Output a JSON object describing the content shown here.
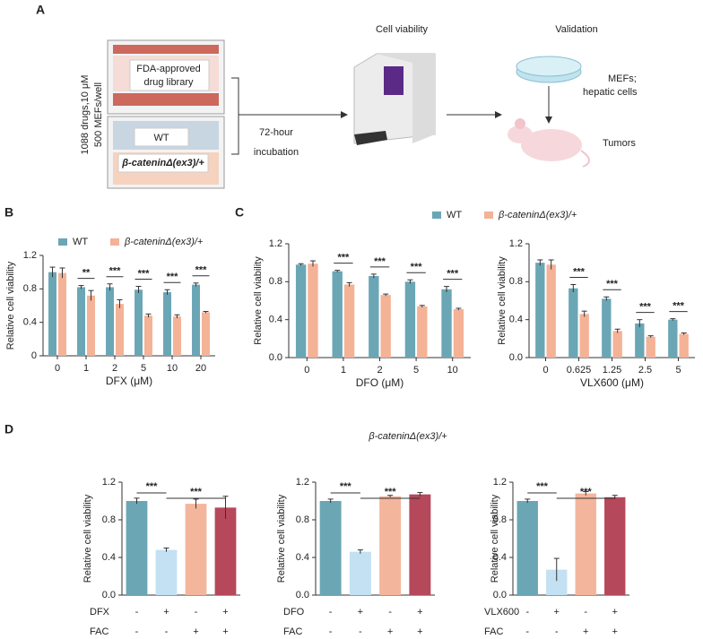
{
  "panel_labels": [
    "A",
    "B",
    "C",
    "D"
  ],
  "schematic": {
    "dose": "1088 drugs,10 μM",
    "cells": "500 MEFs/well",
    "library": [
      "FDA-approved",
      "drug library"
    ],
    "genotypes": [
      "WT",
      "β-cateninΔ(ex3)/+"
    ],
    "incubation": [
      "72-hour",
      "incubation"
    ],
    "assay": "Cell viability",
    "validation": "Validation",
    "models": [
      "MEFs;",
      "hepatic cells"
    ],
    "tumors": "Tumors"
  },
  "d_title": "β-cateninΔ(ex3)/+",
  "chart_data": [
    {
      "type": "grouped_bar",
      "y_label": "Relative cell viability",
      "x_label": "DFX (μM)",
      "categories": [
        "0",
        "1",
        "2",
        "5",
        "10",
        "20"
      ],
      "legend": true,
      "series": [
        {
          "name": "WT",
          "color": "#6ba6b5",
          "values": [
            1.0,
            0.82,
            0.82,
            0.79,
            0.76,
            0.85
          ],
          "errors": [
            0.06,
            0.02,
            0.04,
            0.04,
            0.03,
            0.02
          ]
        },
        {
          "name": "β-cateninΔ(ex3)/+",
          "color": "#f4b297",
          "values": [
            0.99,
            0.72,
            0.62,
            0.48,
            0.47,
            0.52
          ],
          "errors": [
            0.06,
            0.06,
            0.05,
            0.02,
            0.02,
            0.01
          ]
        }
      ],
      "significance": [
        null,
        "**",
        "***",
        "***",
        "***",
        "***"
      ],
      "ylim": [
        0,
        1.2
      ],
      "yticks": [
        0,
        0.4,
        0.8,
        1.2
      ]
    },
    {
      "type": "grouped_bar",
      "y_label": "Relative cell viability",
      "x_label": "DFO (μM)",
      "categories": [
        "0",
        "1",
        "2",
        "5",
        "10"
      ],
      "legend": true,
      "series": [
        {
          "name": "WT",
          "color": "#6ba6b5",
          "values": [
            0.98,
            0.91,
            0.86,
            0.8,
            0.72
          ],
          "errors": [
            0.01,
            0.01,
            0.02,
            0.02,
            0.03
          ]
        },
        {
          "name": "β-cateninΔ(ex3)/+",
          "color": "#f4b297",
          "values": [
            0.99,
            0.77,
            0.66,
            0.54,
            0.51
          ],
          "errors": [
            0.03,
            0.02,
            0.01,
            0.01,
            0.01
          ]
        }
      ],
      "significance": [
        null,
        "***",
        "***",
        "***",
        "***"
      ],
      "ylim": [
        0,
        1.2
      ],
      "yticks": [
        {
          "value": 0,
          "label": "0.0"
        },
        0.4,
        0.8,
        1.2
      ]
    },
    {
      "type": "grouped_bar",
      "y_label": "Relative cell viability",
      "x_label": "VLX600 (μM)",
      "categories": [
        "0",
        "0.625",
        "1.25",
        "2.5",
        "5"
      ],
      "series": [
        {
          "color": "#6ba6b5",
          "values": [
            1.0,
            0.73,
            0.62,
            0.36,
            0.4
          ],
          "errors": [
            0.03,
            0.04,
            0.02,
            0.04,
            0.01
          ]
        },
        {
          "color": "#f4b297",
          "values": [
            0.98,
            0.46,
            0.28,
            0.22,
            0.25
          ],
          "errors": [
            0.05,
            0.03,
            0.02,
            0.01,
            0.01
          ]
        }
      ],
      "significance": [
        null,
        "***",
        "***",
        "***",
        "***"
      ],
      "ylim": [
        0,
        1.2
      ],
      "yticks": [
        {
          "value": 0,
          "label": "0.0"
        },
        0.4,
        0.8,
        1.2
      ]
    },
    {
      "type": "bar",
      "y_label": "Relative cell viability",
      "values": [
        1.0,
        0.48,
        0.97,
        0.93
      ],
      "errors": [
        0.03,
        0.02,
        0.05,
        0.12
      ],
      "colors": [
        "#6ba6b5",
        "#c3e1f2",
        "#f4b59d",
        "#b5485a"
      ],
      "conditions": [
        {
          "name": "DFX",
          "signs": [
            "-",
            "+",
            "-",
            "+"
          ]
        },
        {
          "name": "FAC",
          "signs": [
            "-",
            "-",
            "+",
            "+"
          ]
        }
      ],
      "comparisons": [
        "***",
        "***"
      ],
      "ylim": [
        0,
        1.2
      ],
      "yticks": [
        {
          "value": 0,
          "label": "0.0"
        },
        0.4,
        0.8,
        1.2
      ]
    },
    {
      "type": "bar",
      "y_label": "Relative cell viability",
      "values": [
        1.0,
        0.46,
        1.05,
        1.07
      ],
      "errors": [
        0.02,
        0.02,
        0.01,
        0.02
      ],
      "colors": [
        "#6ba6b5",
        "#c3e1f2",
        "#f4b59d",
        "#b5485a"
      ],
      "conditions": [
        {
          "name": "DFO",
          "signs": [
            "-",
            "+",
            "-",
            "+"
          ]
        },
        {
          "name": "FAC",
          "signs": [
            "-",
            "-",
            "+",
            "+"
          ]
        }
      ],
      "comparisons": [
        "***",
        "***"
      ],
      "ylim": [
        0,
        1.2
      ],
      "yticks": [
        {
          "value": 0,
          "label": "0.0"
        },
        0.4,
        0.8,
        1.2
      ]
    },
    {
      "type": "bar",
      "y_label": "Relative cell viability",
      "values": [
        1.0,
        0.27,
        1.08,
        1.04
      ],
      "errors": [
        0.02,
        0.12,
        0.02,
        0.02
      ],
      "colors": [
        "#6ba6b5",
        "#c3e1f2",
        "#f4b59d",
        "#b5485a"
      ],
      "conditions": [
        {
          "name": "VLX600",
          "signs": [
            "-",
            "+",
            "-",
            "+"
          ]
        },
        {
          "name": "FAC",
          "signs": [
            "-",
            "-",
            "+",
            "+"
          ]
        }
      ],
      "comparisons": [
        "***",
        "***"
      ],
      "ylim": [
        0,
        1.2
      ],
      "yticks": [
        {
          "value": 0,
          "label": "0.0"
        },
        0.4,
        0.8,
        1.2
      ]
    }
  ]
}
